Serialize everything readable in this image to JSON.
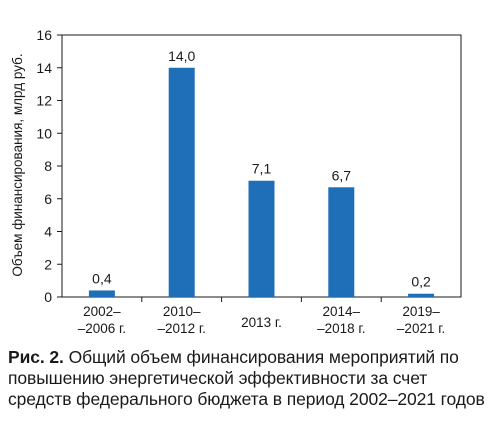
{
  "chart_data": {
    "type": "bar",
    "ylabel": "Объем финансирования, млрд руб.",
    "ylim": [
      0,
      16
    ],
    "yticks": [
      0,
      2,
      4,
      6,
      8,
      10,
      12,
      14,
      16
    ],
    "grid": false,
    "bar_color": "#1f6fb8",
    "categories": [
      [
        "2002–",
        "–2006 г."
      ],
      [
        "2010–",
        "–2012 г."
      ],
      [
        "2013 г."
      ],
      [
        "2014–",
        "–2018 г."
      ],
      [
        "2019–",
        "–2021 г."
      ]
    ],
    "values": [
      0.4,
      14.0,
      7.1,
      6.7,
      0.2
    ],
    "value_labels": [
      "0,4",
      "14,0",
      "7,1",
      "6,7",
      "0,2"
    ]
  },
  "caption": {
    "label": "Рис. 2.",
    "text": "Общий объем финансирования мероприятий по повышению энергетической эффективности за счет средств федерального бюджета в период 2002–2021 годов"
  }
}
